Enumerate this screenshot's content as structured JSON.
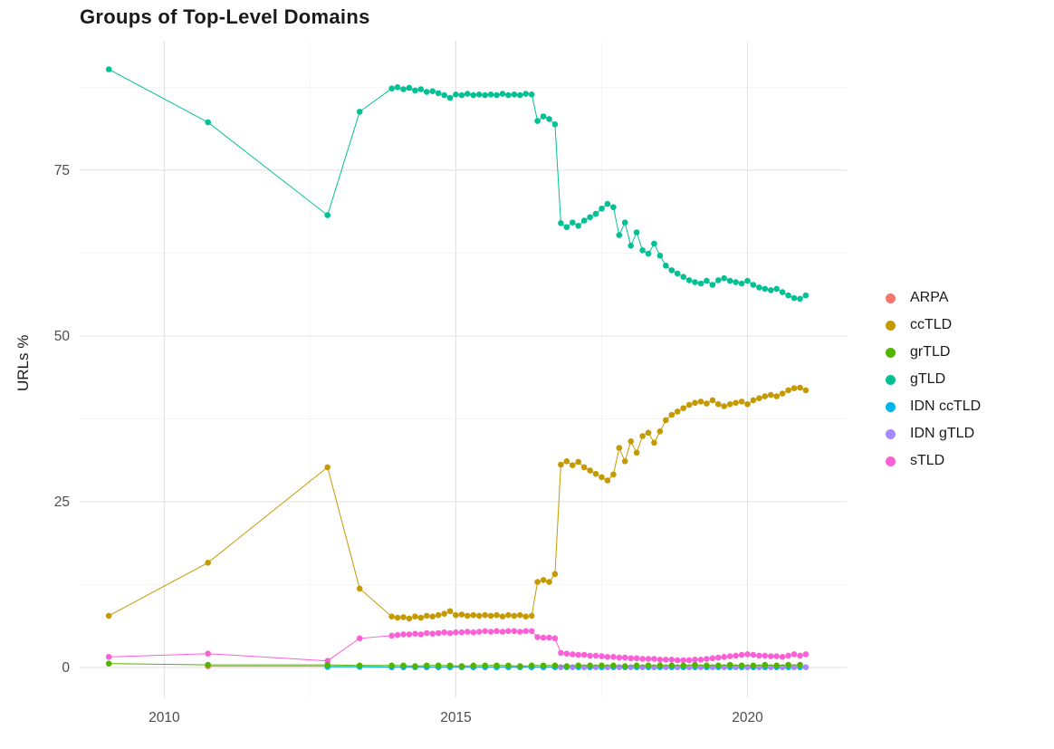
{
  "chart_data": {
    "type": "line",
    "title": "Groups of Top-Level Domains",
    "xlabel": "",
    "ylabel": "URLs %",
    "xlim": [
      2008.55,
      2021.7
    ],
    "ylim": [
      -4.5,
      94.5
    ],
    "x_ticks": {
      "values": [
        2010,
        2015,
        2020
      ],
      "labels": [
        "2010",
        "2015",
        "2020"
      ]
    },
    "y_ticks": {
      "values": [
        0,
        25,
        50,
        75
      ],
      "labels": [
        "0",
        "25",
        "50",
        "75"
      ]
    },
    "x_minor": [
      2012.5,
      2017.5
    ],
    "y_minor": [
      12.5,
      37.5,
      62.5,
      87.5
    ],
    "grid": {
      "major_color": "#e3e3e3",
      "minor_color": "#f2f2f2",
      "background": "#ffffff",
      "grid_on": true
    },
    "legend": {
      "position": "right",
      "title": ""
    },
    "axis_text_color": "#4d4d4d",
    "series": [
      {
        "name": "ARPA",
        "color": "#F8766D",
        "z": 4,
        "early": [
          [
            2010.75,
            0.2
          ],
          [
            2012.8,
            0.2
          ],
          [
            2013.35,
            0.15
          ]
        ],
        "dense": {
          "x0": 2013.9,
          "dx": 0.2,
          "values": [
            0.1,
            0.1,
            0.1,
            0.1,
            0.1,
            0.1,
            0.1,
            0.1,
            0.1,
            0.1,
            0.1,
            0.1,
            0.1,
            0.1,
            0.1,
            0.1,
            0.1,
            0.1,
            0.1,
            0.1,
            0.1,
            0.1,
            0.1,
            0.1,
            0.1,
            0.1,
            0.1,
            0.1,
            0.1,
            0.1,
            0.1,
            0.1,
            0.1,
            0.1,
            0.1,
            0.1
          ]
        }
      },
      {
        "name": "ccTLD",
        "color": "#C49A00",
        "z": 2,
        "early": [
          [
            2009.05,
            7.8
          ],
          [
            2010.75,
            15.8
          ],
          [
            2012.8,
            30.2
          ],
          [
            2013.35,
            11.9
          ]
        ],
        "dense": {
          "x0": 2013.9,
          "dx": 0.1,
          "values": [
            7.7,
            7.5,
            7.6,
            7.4,
            7.7,
            7.5,
            7.8,
            7.7,
            7.9,
            8.1,
            8.5,
            7.9,
            8.0,
            7.8,
            7.9,
            7.8,
            7.9,
            7.8,
            7.9,
            7.7,
            7.9,
            7.8,
            7.9,
            7.7,
            7.8,
            12.9,
            13.2,
            12.9,
            14.1,
            30.6,
            31.1,
            30.5,
            31.0,
            30.2,
            29.7,
            29.2,
            28.7,
            28.2,
            29.1,
            33.1,
            31.1,
            34.1,
            32.4,
            34.9,
            35.4,
            33.9,
            35.6,
            37.3,
            38.1,
            38.6,
            39.1,
            39.6,
            39.9,
            40.1,
            39.8,
            40.3,
            39.7,
            39.4,
            39.7,
            39.9,
            40.1,
            39.7,
            40.3,
            40.6,
            40.9,
            41.1,
            40.9,
            41.3,
            41.8,
            42.1,
            42.2,
            41.8
          ]
        }
      },
      {
        "name": "grTLD",
        "color": "#53B400",
        "z": 7,
        "early": [
          [
            2009.05,
            0.6
          ],
          [
            2010.75,
            0.4
          ],
          [
            2012.8,
            0.4
          ],
          [
            2013.35,
            0.3
          ]
        ],
        "dense": {
          "x0": 2013.9,
          "dx": 0.2,
          "values": [
            0.3,
            0.3,
            0.2,
            0.3,
            0.3,
            0.3,
            0.2,
            0.3,
            0.3,
            0.3,
            0.3,
            0.2,
            0.3,
            0.3,
            0.3,
            0.2,
            0.3,
            0.3,
            0.3,
            0.3,
            0.2,
            0.3,
            0.3,
            0.3,
            0.3,
            0.3,
            0.4,
            0.3,
            0.3,
            0.4,
            0.3,
            0.3,
            0.4,
            0.3,
            0.4,
            0.4
          ]
        }
      },
      {
        "name": "gTLD",
        "color": "#00C094",
        "z": 1,
        "early": [
          [
            2009.05,
            90.2
          ],
          [
            2010.75,
            82.2
          ],
          [
            2012.8,
            68.2
          ],
          [
            2013.35,
            83.8
          ]
        ],
        "dense": {
          "x0": 2013.9,
          "dx": 0.1,
          "values": [
            87.3,
            87.5,
            87.2,
            87.4,
            87.0,
            87.2,
            86.8,
            86.9,
            86.6,
            86.3,
            85.9,
            86.4,
            86.3,
            86.5,
            86.3,
            86.4,
            86.3,
            86.4,
            86.3,
            86.5,
            86.3,
            86.4,
            86.3,
            86.5,
            86.4,
            82.4,
            83.1,
            82.7,
            81.9,
            67.0,
            66.4,
            67.1,
            66.6,
            67.4,
            67.9,
            68.4,
            69.2,
            69.9,
            69.4,
            65.2,
            67.1,
            63.6,
            65.6,
            62.9,
            62.4,
            63.9,
            62.1,
            60.6,
            59.9,
            59.4,
            58.9,
            58.4,
            58.1,
            57.9,
            58.3,
            57.7,
            58.4,
            58.7,
            58.3,
            58.1,
            57.9,
            58.3,
            57.7,
            57.3,
            57.1,
            56.9,
            57.1,
            56.6,
            56.1,
            55.7,
            55.6,
            56.1
          ]
        }
      },
      {
        "name": "IDN ccTLD",
        "color": "#00B6EB",
        "z": 5,
        "early": [
          [
            2012.8,
            0.1
          ],
          [
            2013.35,
            0.1
          ]
        ],
        "dense": {
          "x0": 2013.9,
          "dx": 0.2,
          "values": [
            0.05,
            0.05,
            0.05,
            0.05,
            0.05,
            0.05,
            0.05,
            0.05,
            0.05,
            0.05,
            0.05,
            0.05,
            0.05,
            0.05,
            0.05,
            0.05,
            0.05,
            0.05,
            0.05,
            0.05,
            0.05,
            0.05,
            0.05,
            0.05,
            0.05,
            0.05,
            0.05,
            0.05,
            0.05,
            0.05,
            0.05,
            0.05,
            0.05,
            0.05,
            0.05,
            0.05
          ]
        }
      },
      {
        "name": "IDN gTLD",
        "color": "#A58AFF",
        "z": 6,
        "early": [],
        "dense": {
          "x0": 2016.8,
          "dx": 0.2,
          "values": [
            0.05,
            0.05,
            0.05,
            0.05,
            0.05,
            0.05,
            0.05,
            0.05,
            0.05,
            0.05,
            0.05,
            0.05,
            0.05,
            0.05,
            0.05,
            0.05,
            0.05,
            0.05,
            0.05,
            0.05,
            0.05,
            0.05
          ]
        }
      },
      {
        "name": "sTLD",
        "color": "#FB61D7",
        "z": 3,
        "early": [
          [
            2009.05,
            1.6
          ],
          [
            2010.75,
            2.1
          ],
          [
            2012.8,
            1.0
          ],
          [
            2013.35,
            4.4
          ]
        ],
        "dense": {
          "x0": 2013.9,
          "dx": 0.1,
          "values": [
            4.8,
            4.9,
            5.0,
            5.0,
            5.1,
            5.0,
            5.2,
            5.1,
            5.2,
            5.3,
            5.2,
            5.3,
            5.3,
            5.4,
            5.3,
            5.4,
            5.5,
            5.4,
            5.5,
            5.4,
            5.5,
            5.5,
            5.4,
            5.5,
            5.5,
            4.6,
            4.5,
            4.5,
            4.4,
            2.2,
            2.1,
            2.0,
            1.9,
            1.9,
            1.8,
            1.8,
            1.7,
            1.6,
            1.6,
            1.5,
            1.5,
            1.4,
            1.4,
            1.3,
            1.3,
            1.3,
            1.2,
            1.2,
            1.2,
            1.1,
            1.1,
            1.1,
            1.2,
            1.2,
            1.3,
            1.4,
            1.5,
            1.6,
            1.7,
            1.8,
            1.9,
            2.0,
            1.9,
            1.8,
            1.8,
            1.7,
            1.7,
            1.6,
            1.8,
            2.0,
            1.8,
            2.0
          ]
        }
      }
    ]
  }
}
